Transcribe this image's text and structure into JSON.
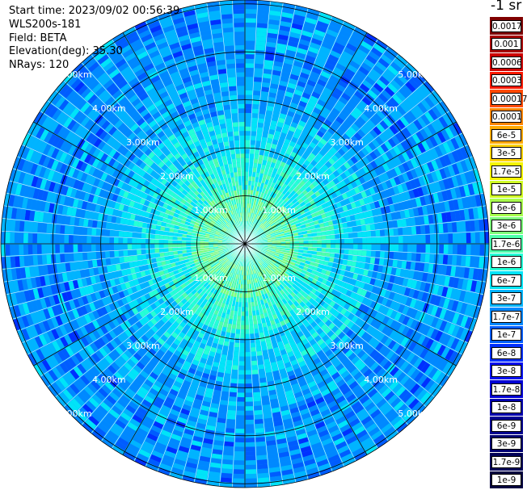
{
  "info": {
    "start_time": "Start time: 2023/09/02 00:56:39",
    "instrument": "WLS200s-181",
    "field": "Field: BETA",
    "elevation": "Elevation(deg): 35.30",
    "nrays": "NRays: 120"
  },
  "unit_label": "-1 sr",
  "nrays": 120,
  "range_rings": [
    "1.00km",
    "2.00km",
    "3.00km",
    "4.00km",
    "5.00km"
  ],
  "colorbar": [
    {
      "label": "0.0017",
      "color": "#7f0000"
    },
    {
      "label": "0.001",
      "color": "#a80000"
    },
    {
      "label": "0.0006",
      "color": "#cc0000"
    },
    {
      "label": "0.0003",
      "color": "#ff1a00"
    },
    {
      "label": "0.00017",
      "color": "#ff4a00"
    },
    {
      "label": "0.0001",
      "color": "#ff8400"
    },
    {
      "label": "6e-5",
      "color": "#ffa800"
    },
    {
      "label": "3e-5",
      "color": "#ffd200"
    },
    {
      "label": "1.7e-5",
      "color": "#f4f400"
    },
    {
      "label": "1e-5",
      "color": "#d0ff25"
    },
    {
      "label": "6e-6",
      "color": "#a8ff4d"
    },
    {
      "label": "3e-6",
      "color": "#7cff7a"
    },
    {
      "label": "1.7e-6",
      "color": "#4dffaa"
    },
    {
      "label": "1e-6",
      "color": "#25ffd6"
    },
    {
      "label": "6e-7",
      "color": "#00e4f8"
    },
    {
      "label": "3e-7",
      "color": "#00b4ff"
    },
    {
      "label": "1.7e-7",
      "color": "#0088ff"
    },
    {
      "label": "1e-7",
      "color": "#005cff"
    },
    {
      "label": "6e-8",
      "color": "#0030ff"
    },
    {
      "label": "3e-8",
      "color": "#0010f0"
    },
    {
      "label": "1.7e-8",
      "color": "#0000d4"
    },
    {
      "label": "1e-8",
      "color": "#0000b0"
    },
    {
      "label": "6e-9",
      "color": "#000090"
    },
    {
      "label": "3e-9",
      "color": "#000070"
    },
    {
      "label": "1.7e-9",
      "color": "#000058"
    },
    {
      "label": "1e-9",
      "color": "#000040"
    }
  ],
  "palette": {
    "grid": "#000000",
    "ring_label": "#ffffff",
    "ray_gap": "#ffffff"
  }
}
